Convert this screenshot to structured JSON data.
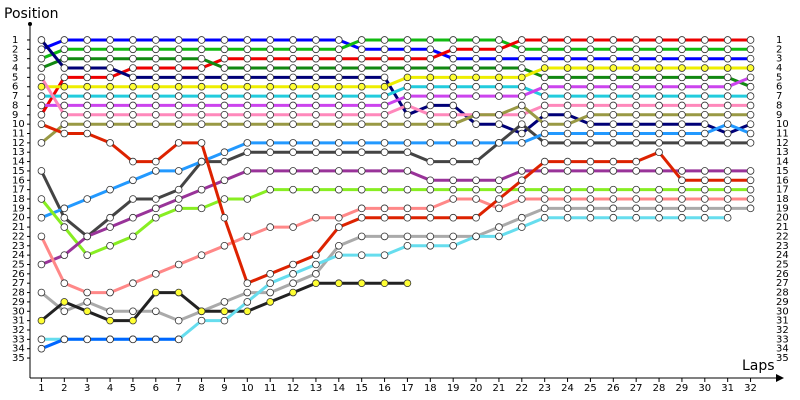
{
  "chart_data": {
    "type": "line",
    "y_title": "Position",
    "x_title": "Laps",
    "x": [
      1,
      2,
      3,
      4,
      5,
      6,
      7,
      8,
      9,
      10,
      11,
      12,
      13,
      14,
      15,
      16,
      17,
      18,
      19,
      20,
      21,
      22,
      23,
      24,
      25,
      26,
      27,
      28,
      29,
      30,
      31,
      32
    ],
    "xlim": [
      0.5,
      33.2
    ],
    "xticks": [
      1,
      2,
      3,
      4,
      5,
      6,
      7,
      8,
      9,
      10,
      11,
      12,
      13,
      14,
      15,
      16,
      17,
      18,
      19,
      20,
      21,
      22,
      23,
      24,
      25,
      26,
      27,
      28,
      29,
      30,
      31,
      32
    ],
    "ylim": [
      36,
      0
    ],
    "yticks": [
      1,
      2,
      3,
      4,
      5,
      6,
      7,
      8,
      9,
      10,
      11,
      12,
      13,
      14,
      15,
      16,
      17,
      18,
      19,
      20,
      21,
      22,
      23,
      24,
      25,
      26,
      27,
      28,
      29,
      30,
      31,
      32,
      33,
      34,
      35
    ],
    "grid": false,
    "series": [
      {
        "color": "#0000ff",
        "values": [
          2,
          1,
          1,
          1,
          1,
          1,
          1,
          1,
          1,
          1,
          1,
          1,
          1,
          1,
          2,
          2,
          2,
          2,
          3,
          3,
          3,
          3,
          3,
          3,
          3,
          3,
          3,
          3,
          3,
          3,
          3,
          3
        ]
      },
      {
        "color": "#11bb11",
        "values": [
          3,
          2,
          2,
          2,
          2,
          2,
          2,
          2,
          2,
          2,
          2,
          2,
          2,
          2,
          1,
          1,
          1,
          1,
          1,
          1,
          1,
          2,
          2,
          2,
          2,
          2,
          2,
          2,
          2,
          2,
          2,
          2
        ]
      },
      {
        "color": "#ee0000",
        "values": [
          9,
          5,
          5,
          5,
          4,
          4,
          4,
          4,
          3,
          3,
          3,
          3,
          3,
          3,
          3,
          3,
          3,
          3,
          2,
          2,
          2,
          1,
          1,
          1,
          1,
          1,
          1,
          1,
          1,
          1,
          1,
          1
        ]
      },
      {
        "color": "#118811",
        "values": [
          4,
          3,
          3,
          3,
          3,
          3,
          3,
          3,
          4,
          4,
          4,
          4,
          4,
          4,
          4,
          4,
          4,
          4,
          4,
          4,
          4,
          4,
          5,
          5,
          5,
          5,
          5,
          5,
          5,
          5,
          5,
          6
        ]
      },
      {
        "color": "#000077",
        "values": [
          1,
          4,
          4,
          4,
          5,
          5,
          5,
          5,
          5,
          5,
          5,
          5,
          5,
          5,
          5,
          5,
          9,
          8,
          8,
          10,
          10,
          11,
          9,
          9,
          10,
          10,
          10,
          10,
          10,
          10,
          11,
          10
        ]
      },
      {
        "color": "#eeee00",
        "values": [
          6,
          6,
          6,
          6,
          6,
          6,
          6,
          6,
          6,
          6,
          6,
          6,
          6,
          6,
          6,
          6,
          5,
          5,
          5,
          5,
          5,
          5,
          4,
          4,
          4,
          4,
          4,
          4,
          4,
          4,
          4,
          4
        ]
      },
      {
        "color": "#22ccdd",
        "values": [
          7,
          7,
          7,
          7,
          7,
          7,
          7,
          7,
          7,
          7,
          7,
          7,
          7,
          7,
          7,
          7,
          6,
          6,
          6,
          6,
          6,
          6,
          7,
          7,
          7,
          7,
          7,
          7,
          7,
          7,
          7,
          7
        ]
      },
      {
        "color": "#cc44ee",
        "values": [
          8,
          8,
          8,
          8,
          8,
          8,
          8,
          8,
          8,
          8,
          8,
          8,
          8,
          8,
          8,
          8,
          7,
          7,
          7,
          7,
          7,
          7,
          6,
          6,
          6,
          6,
          6,
          6,
          6,
          6,
          6,
          5
        ]
      },
      {
        "color": "#ff88bb",
        "values": [
          5,
          9,
          9,
          9,
          9,
          9,
          9,
          9,
          9,
          9,
          9,
          9,
          9,
          9,
          9,
          9,
          8,
          9,
          9,
          9,
          9,
          9,
          8,
          8,
          8,
          8,
          8,
          8,
          8,
          8,
          8,
          8
        ]
      },
      {
        "color": "#999944",
        "values": [
          12,
          10,
          10,
          10,
          10,
          10,
          10,
          10,
          10,
          10,
          10,
          10,
          10,
          10,
          10,
          10,
          10,
          10,
          10,
          9,
          9,
          8,
          10,
          10,
          9,
          9,
          9,
          9,
          9,
          9,
          9,
          9
        ]
      },
      {
        "color": "#444444",
        "values": [
          15,
          20,
          22,
          20,
          18,
          18,
          17,
          14,
          14,
          13,
          13,
          13,
          13,
          13,
          13,
          13,
          13,
          14,
          14,
          14,
          12,
          10,
          12,
          12,
          12,
          12,
          12,
          12,
          12,
          12,
          12,
          12
        ]
      },
      {
        "color": "#2299ff",
        "values": [
          20,
          19,
          18,
          17,
          16,
          15,
          15,
          14,
          13,
          12,
          12,
          12,
          12,
          12,
          12,
          12,
          12,
          12,
          12,
          12,
          12,
          12,
          11,
          11,
          11,
          11,
          11,
          11,
          11,
          11,
          10,
          11
        ]
      },
      {
        "color": "#88ee22",
        "values": [
          18,
          21,
          24,
          23,
          22,
          20,
          19,
          19,
          18,
          18,
          17,
          17,
          17,
          17,
          17,
          17,
          17,
          17,
          17,
          17,
          17,
          17,
          17,
          17,
          17,
          17,
          17,
          17,
          17,
          17,
          17,
          17
        ]
      },
      {
        "color": "#993399",
        "values": [
          25,
          24,
          22,
          21,
          20,
          19,
          18,
          17,
          16,
          15,
          15,
          15,
          15,
          15,
          15,
          15,
          15,
          16,
          16,
          16,
          16,
          15,
          15,
          15,
          15,
          15,
          15,
          15,
          15,
          15,
          15,
          15
        ]
      },
      {
        "color": "#ff8888",
        "values": [
          22,
          27,
          28,
          28,
          27,
          26,
          25,
          24,
          23,
          22,
          21,
          21,
          20,
          20,
          19,
          19,
          19,
          19,
          18,
          18,
          19,
          18,
          18,
          18,
          18,
          18,
          18,
          18,
          18,
          18,
          18,
          18
        ]
      },
      {
        "color": "#dd2200",
        "values": [
          10,
          11,
          11,
          12,
          14,
          14,
          12,
          12,
          20,
          27,
          26,
          25,
          24,
          21,
          20,
          20,
          20,
          20,
          20,
          20,
          18,
          16,
          14,
          14,
          14,
          14,
          14,
          13,
          16,
          16,
          16,
          16
        ]
      },
      {
        "color": "#aaaaaa",
        "values": [
          28,
          30,
          29,
          30,
          30,
          30,
          31,
          30,
          29,
          28,
          28,
          27,
          26,
          23,
          22,
          22,
          22,
          22,
          22,
          22,
          21,
          20,
          19,
          19,
          19,
          19,
          19,
          19,
          19,
          19,
          19,
          19
        ]
      },
      {
        "color": "#222222",
        "values": [
          31,
          29,
          30,
          31,
          31,
          28,
          28,
          30,
          30,
          30,
          29,
          28,
          27,
          27,
          27,
          27,
          27,
          null,
          null,
          null,
          null,
          null,
          null,
          null,
          null,
          null,
          null,
          null,
          null,
          null,
          null,
          null
        ]
      },
      {
        "color": "#66ddee",
        "values": [
          33,
          33,
          33,
          33,
          33,
          33,
          33,
          31,
          31,
          29,
          27,
          26,
          25,
          24,
          24,
          24,
          23,
          23,
          23,
          22,
          22,
          21,
          20,
          20,
          20,
          20,
          20,
          20,
          20,
          20,
          20,
          null
        ]
      },
      {
        "color": "#0066ff",
        "values": [
          34,
          33,
          33,
          33,
          33,
          33,
          33,
          null,
          null,
          null,
          null,
          null,
          null,
          null,
          null,
          null,
          null,
          null,
          null,
          null,
          null,
          null,
          null,
          null,
          null,
          null,
          null,
          null,
          null,
          null,
          null,
          null
        ]
      }
    ]
  }
}
